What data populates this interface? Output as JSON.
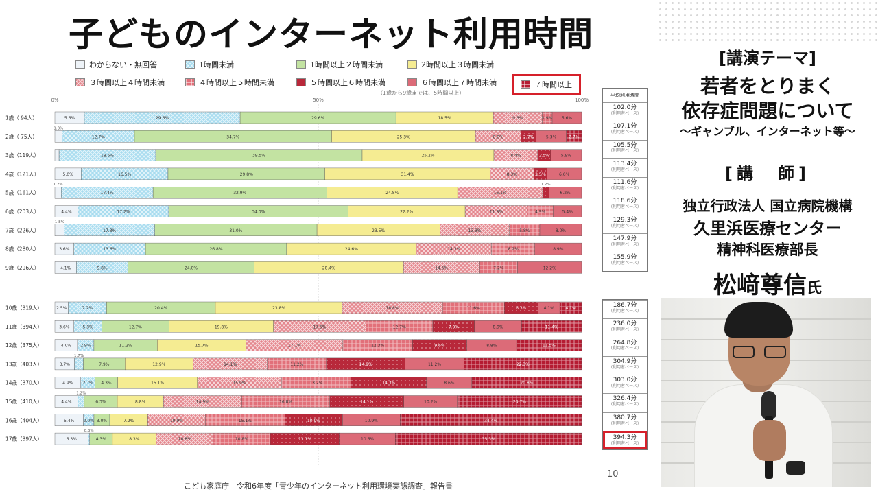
{
  "title": "子どものインターネット利用時間",
  "legend": [
    {
      "label": "わからない・無回答",
      "color": "#eef3f8",
      "pattern": "none"
    },
    {
      "label": "1時間未満",
      "color": "#a8dcef",
      "pattern": "check"
    },
    {
      "label": "1時間以上２時間未満",
      "color": "#c3e3a2",
      "pattern": "none"
    },
    {
      "label": "2時間以上３時間未満",
      "color": "#f5ec92",
      "pattern": "none"
    },
    {
      "label": "３時間以上４時間未満",
      "color": "#e4868d",
      "pattern": "check"
    },
    {
      "label": "４時間以上５時間未満",
      "color": "#e2707a",
      "pattern": "grid"
    },
    {
      "label": "５時間以上６時間未満",
      "color": "#b8283a",
      "pattern": "dots"
    },
    {
      "label": "６時間以上７時間未満",
      "color": "#dc6b78",
      "pattern": "none"
    },
    {
      "label": "７時間以上",
      "color": "#b51c32",
      "pattern": "grid"
    }
  ],
  "legend_note": "（1歳から9歳までは、5時間以上）",
  "axis_ticks": [
    "0%",
    "50%",
    "100%"
  ],
  "avg_header": "平均利用時間",
  "avg_sub": "(利用者ベース)",
  "chart_data": {
    "type": "bar",
    "orientation": "horizontal-stacked-100",
    "series_names": [
      "わからない・無回答",
      "1時間未満",
      "1時間以上２時間未満",
      "2時間以上３時間未満",
      "３時間以上４時間未満",
      "４時間以上５時間未満",
      "５時間以上６時間未満",
      "６時間以上７時間未満",
      "７時間以上"
    ],
    "groups": [
      {
        "rows": [
          {
            "label": "1歳（ 94人）",
            "values": [
              5.6,
              29.6,
              29.6,
              18.5,
              9.3,
              1.9,
              0,
              5.6,
              0
            ],
            "texts": [
              "5.6%",
              "29.6%",
              "29.6%",
              "18.5%",
              "9.3%",
              "1.9%",
              "",
              "5.6%",
              ""
            ],
            "avg": "102.0分"
          },
          {
            "label": "2歳（ 75人）",
            "values": [
              1.3,
              12.7,
              34.7,
              25.3,
              8.0,
              0,
              2.7,
              5.3,
              2.7
            ],
            "texts": [
              "1.3%",
              "12.7%",
              "34.7%",
              "25.3%",
              "8.0%",
              "",
              "2.7%",
              "5.3%",
              "2.7%"
            ],
            "avg": "107.1分"
          },
          {
            "label": "3歳（119人）",
            "values": [
              0.8,
              18.5,
              39.5,
              25.2,
              8.4,
              0,
              2.5,
              5.9,
              0
            ],
            "texts": [
              "",
              "18.5%",
              "39.5%",
              "25.2%",
              "8.4%",
              "",
              "2.5%",
              "5.9%",
              ""
            ],
            "avg": "105.5分"
          },
          {
            "label": "4歳（121人）",
            "values": [
              5.0,
              16.5,
              29.8,
              31.4,
              8.3,
              0,
              2.5,
              6.6,
              0
            ],
            "texts": [
              "5.0%",
              "16.5%",
              "29.8%",
              "31.4%",
              "8.3%",
              "",
              "2.5%",
              "6.6%",
              ""
            ],
            "avg": "113.4分"
          },
          {
            "label": "5歳（161人）",
            "values": [
              1.2,
              17.4,
              32.9,
              24.8,
              16.1,
              0,
              1.2,
              6.2,
              0
            ],
            "texts": [
              "1.2%",
              "17.4%",
              "32.9%",
              "24.8%",
              "16.1%",
              "",
              "1.2%",
              "6.2%",
              ""
            ],
            "avg": "111.6分"
          },
          {
            "label": "6歳（203人）",
            "values": [
              4.4,
              17.2,
              34.0,
              22.2,
              11.8,
              4.9,
              0,
              5.4,
              0
            ],
            "texts": [
              "4.4%",
              "17.2%",
              "34.0%",
              "22.2%",
              "11.8%",
              "4.9%",
              "",
              "5.4%",
              ""
            ],
            "avg": "118.6分"
          },
          {
            "label": "7歳（226人）",
            "values": [
              1.8,
              17.3,
              31.0,
              23.5,
              13.3,
              5.8,
              0,
              8.0,
              0
            ],
            "texts": [
              "1.8%",
              "17.3%",
              "31.0%",
              "23.5%",
              "13.3%",
              "5.8%",
              "",
              "8.0%",
              ""
            ],
            "avg": "129.3分"
          },
          {
            "label": "8歳（280人）",
            "values": [
              3.6,
              13.6,
              26.8,
              24.6,
              14.3,
              8.2,
              0,
              8.9,
              0
            ],
            "texts": [
              "3.6%",
              "13.6%",
              "26.8%",
              "24.6%",
              "14.3%",
              "8.2%",
              "",
              "8.9%",
              ""
            ],
            "avg": "147.9分"
          },
          {
            "label": "9歳（296人）",
            "values": [
              4.1,
              9.8,
              24.0,
              28.4,
              14.5,
              7.2,
              0,
              12.2,
              0
            ],
            "texts": [
              "4.1%",
              "9.8%",
              "24.0%",
              "28.4%",
              "14.5%",
              "7.2%",
              "",
              "12.2%",
              ""
            ],
            "avg": "155.9分"
          }
        ]
      },
      {
        "rows": [
          {
            "label": "10歳（319人）",
            "values": [
              2.5,
              7.2,
              20.4,
              23.8,
              18.8,
              11.6,
              6.3,
              4.1,
              4.1
            ],
            "texts": [
              "2.5%",
              "7.2%",
              "20.4%",
              "23.8%",
              "18.8%",
              "11.6%",
              "6.3%",
              "4.1%",
              "4.1%"
            ],
            "avg": "186.7分"
          },
          {
            "label": "11歳（394人）",
            "values": [
              3.6,
              5.3,
              12.7,
              19.8,
              17.5,
              12.7,
              7.9,
              8.9,
              11.4
            ],
            "texts": [
              "3.6%",
              "5.3%",
              "12.7%",
              "19.8%",
              "17.5%",
              "12.7%",
              "7.9%",
              "8.9%",
              "11.4%"
            ],
            "avg": "236.0分"
          },
          {
            "label": "12歳（375人）",
            "values": [
              4.0,
              2.9,
              11.2,
              15.7,
              17.1,
              12.3,
              9.6,
              8.8,
              11.5
            ],
            "texts": [
              "4.0%",
              "2.9%",
              "11.2%",
              "15.7%",
              "17.1%",
              "12.3%",
              "9.6%",
              "8.8%",
              "11.5%"
            ],
            "avg": "264.8分"
          },
          {
            "label": "13歳（403人）",
            "values": [
              3.7,
              1.7,
              7.9,
              12.9,
              14.1,
              11.2,
              14.9,
              11.2,
              22.3
            ],
            "texts": [
              "3.7%",
              "1.7%",
              "7.9%",
              "12.9%",
              "14.1%",
              "11.2%",
              "14.9%",
              "11.2%",
              "22.3%"
            ],
            "avg": "304.9分"
          },
          {
            "label": "14歳（370人）",
            "values": [
              4.9,
              2.7,
              4.3,
              15.1,
              15.9,
              13.2,
              14.3,
              8.6,
              20.8
            ],
            "texts": [
              "4.9%",
              "2.7%",
              "4.3%",
              "15.1%",
              "15.9%",
              "13.2%",
              "14.3%",
              "8.6%",
              "20.8%"
            ],
            "avg": "303.0分"
          },
          {
            "label": "15歳（410人）",
            "values": [
              4.4,
              1.2,
              6.3,
              8.8,
              14.9,
              16.8,
              14.1,
              10.2,
              23.7
            ],
            "texts": [
              "4.4%",
              "1.2%",
              "6.3%",
              "8.8%",
              "14.9%",
              "16.8%",
              "14.1%",
              "10.2%",
              "23.7%"
            ],
            "avg": "326.4分"
          },
          {
            "label": "16歳（404人）",
            "values": [
              5.4,
              2.0,
              3.0,
              7.2,
              10.9,
              15.1,
              10.9,
              10.9,
              34.4
            ],
            "texts": [
              "5.4%",
              "2.0%",
              "3.0%",
              "7.2%",
              "10.9%",
              "15.1%",
              "10.9%",
              "10.9%",
              "34.4%"
            ],
            "avg": "380.7分"
          },
          {
            "label": "17歳（397人）",
            "values": [
              6.3,
              0.3,
              4.3,
              8.3,
              10.8,
              10.8,
              13.1,
              10.6,
              35.3
            ],
            "texts": [
              "6.3%",
              "0.3%",
              "4.3%",
              "8.3%",
              "10.8%",
              "10.8%",
              "13.1%",
              "10.6%",
              "35.3%"
            ],
            "avg": "394.3分"
          }
        ]
      }
    ]
  },
  "page_number": "10",
  "source": "こども家庭庁　令和6年度「青少年のインターネット利用環境実態調査」報告書",
  "panel": {
    "theme_heading": "[講演テーマ]",
    "theme_line1": "若者をとりまく",
    "theme_line2": "依存症問題について",
    "theme_line3": "～ギャンブル、インターネット等～",
    "lecturer_heading": "[講　師]",
    "org1": "独立行政法人 国立病院機構",
    "org2": "久里浜医療センター",
    "org3": "精神科医療部長",
    "name": "松﨑尊信",
    "honorific": "氏"
  }
}
